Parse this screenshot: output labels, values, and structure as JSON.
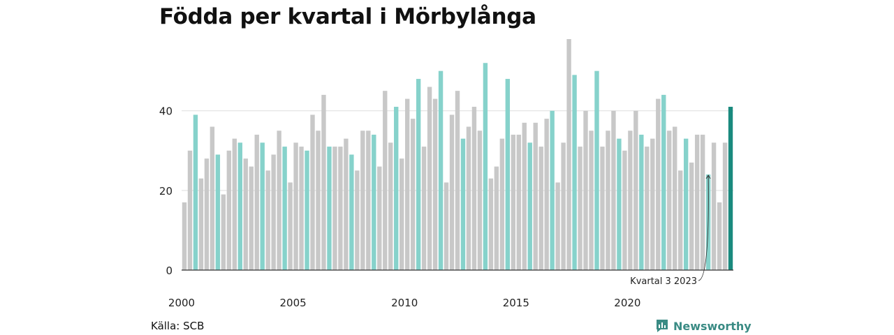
{
  "title": "Födda per kvartal i Mörbylånga",
  "source": "Källa: SCB",
  "brand": {
    "name": "Newsworthy",
    "icon": "newsworthy-logo-icon"
  },
  "colors": {
    "other": "#c8c8c8",
    "q3": "#86d2cb",
    "highlight": "#1a8a7e",
    "grid": "#dddddd",
    "axis": "#333333"
  },
  "chart_data": {
    "type": "bar",
    "title": "Födda per kvartal i Mörbylånga",
    "start_year": 2000,
    "x_tick_labels": [
      "2000",
      "2005",
      "2010",
      "2015",
      "2020"
    ],
    "y_ticks": [
      0,
      20,
      40
    ],
    "ylim": [
      0,
      58
    ],
    "grid": true,
    "annotation": {
      "text": "Kvartal 3 2023",
      "year": 2023,
      "quarter": 3
    },
    "values": [
      17,
      30,
      39,
      23,
      28,
      36,
      29,
      19,
      30,
      33,
      32,
      28,
      26,
      34,
      32,
      25,
      29,
      35,
      31,
      22,
      32,
      31,
      30,
      39,
      35,
      44,
      31,
      31,
      31,
      33,
      29,
      25,
      35,
      35,
      34,
      26,
      45,
      32,
      41,
      28,
      43,
      38,
      48,
      31,
      46,
      43,
      50,
      22,
      39,
      45,
      33,
      36,
      41,
      35,
      52,
      23,
      26,
      33,
      48,
      34,
      34,
      37,
      32,
      37,
      31,
      38,
      40,
      22,
      32,
      58,
      49,
      31,
      40,
      35,
      50,
      31,
      35,
      40,
      33,
      30,
      35,
      40,
      34,
      31,
      33,
      43,
      44,
      35,
      36,
      25,
      33,
      27,
      34,
      34,
      24,
      32,
      17,
      32,
      41
    ]
  }
}
